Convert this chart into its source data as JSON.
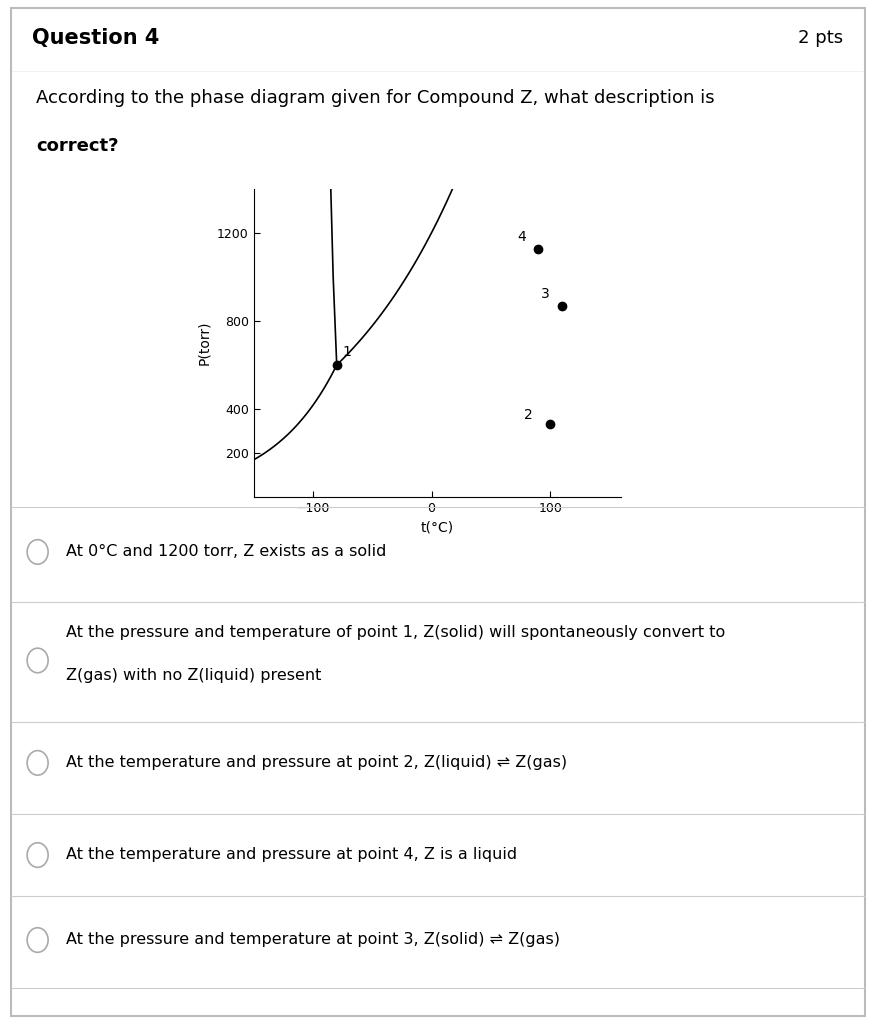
{
  "title": "Question 4",
  "pts": "2 pts",
  "question_text_line1": "According to the phase diagram given for Compound Z, what description is",
  "question_text_line2": "correct?",
  "bg_color": "#ffffff",
  "header_bg": "#f2f2f2",
  "border_color": "#cccccc",
  "plot_ylabel": "P(torr)",
  "plot_xlabel": "t(°C)",
  "plot_yticks": [
    200,
    400,
    800,
    1200
  ],
  "plot_xticks": [
    -100,
    0,
    100
  ],
  "plot_xlim": [
    -150,
    160
  ],
  "plot_ylim": [
    0,
    1400
  ],
  "triple_point_t": -80,
  "triple_point_p": 600,
  "point2_t": 100,
  "point2_p": 330,
  "point3_t": 110,
  "point3_p": 870,
  "point4_t": 90,
  "point4_p": 1130,
  "options": [
    "At 0°C and 1200 torr, Z exists as a solid",
    "At the pressure and temperature of point 1, Z(solid) will spontaneously convert to Z(gas) with no Z(liquid) present",
    "At the temperature and pressure at point 2, Z(liquid) ⇌ Z(gas)",
    "At the temperature and pressure at point 4, Z is a liquid",
    "At the pressure and temperature at point 3, Z(solid) ⇌ Z(gas)"
  ]
}
